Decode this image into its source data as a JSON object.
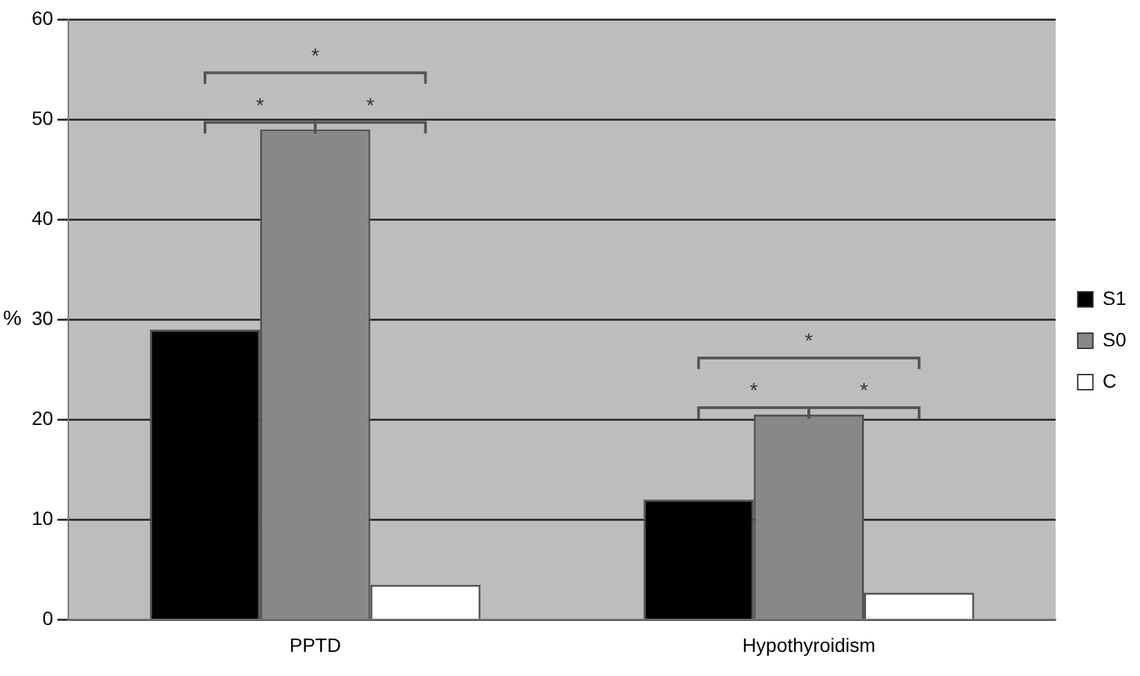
{
  "chart_data": {
    "type": "bar",
    "ylabel": "%",
    "categories": [
      "PPTD",
      "Hypothyroidism"
    ],
    "series": [
      {
        "name": "S1",
        "color": "#000000",
        "values": [
          29,
          12
        ]
      },
      {
        "name": "S0",
        "color": "#888888",
        "values": [
          49,
          20.5
        ]
      },
      {
        "name": "C",
        "color": "#ffffff",
        "values": [
          3.5,
          2.7
        ]
      }
    ],
    "ylim": [
      0,
      60
    ],
    "yticks": [
      0,
      10,
      20,
      30,
      40,
      50,
      60
    ],
    "grid": "y",
    "legend": "right",
    "annotations": [
      "*",
      "*",
      "*",
      "*",
      "*",
      "*"
    ]
  }
}
